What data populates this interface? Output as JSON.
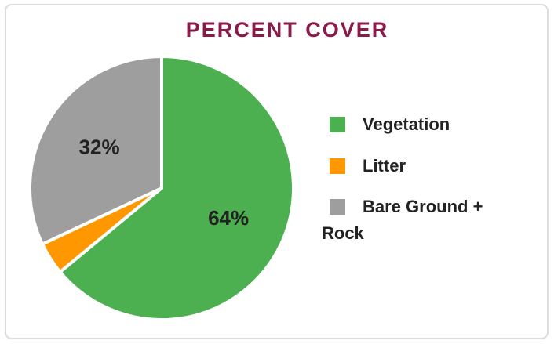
{
  "chart_data": {
    "type": "pie",
    "title": "PERCENT COVER",
    "categories": [
      "Vegetation",
      "Litter",
      "Bare Ground + Rock"
    ],
    "values": [
      64,
      4,
      32
    ],
    "value_labels": [
      "64%",
      null,
      "32%"
    ],
    "colors": [
      "#4caf50",
      "#ff9800",
      "#9e9e9e"
    ],
    "legend": "right"
  }
}
